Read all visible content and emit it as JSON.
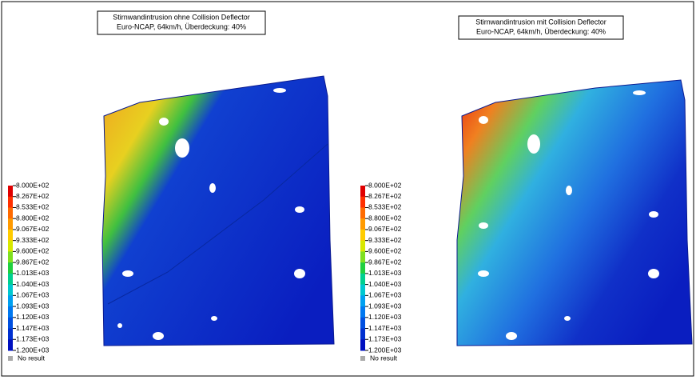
{
  "panels": [
    {
      "title_lines": [
        "Stirnwandintrusion ohne Collision Deflector",
        "Euro-NCAP, 64km/h, Überdeckung: 40%"
      ],
      "legend": [
        "8.000E+02",
        "8.267E+02",
        "8.533E+02",
        "8.800E+02",
        "9.067E+02",
        "9.333E+02",
        "9.600E+02",
        "9.867E+02",
        "1.013E+03",
        "1.040E+03",
        "1.067E+03",
        "1.093E+03",
        "1.120E+03",
        "1.147E+03",
        "1.173E+03",
        "1.200E+03"
      ],
      "no_result": "No result"
    },
    {
      "title_lines": [
        "Stirnwandintrusion mit Collision Deflector",
        "Euro-NCAP, 64km/h, Überdeckung: 40%"
      ],
      "legend": [
        "8.000E+02",
        "8.267E+02",
        "8.533E+02",
        "8.800E+02",
        "9.067E+02",
        "9.333E+02",
        "9.600E+02",
        "9.867E+02",
        "1.013E+03",
        "1.040E+03",
        "1.067E+03",
        "1.093E+03",
        "1.120E+03",
        "1.147E+03",
        "1.173E+03",
        "1.200E+03"
      ],
      "no_result": "No result"
    }
  ]
}
